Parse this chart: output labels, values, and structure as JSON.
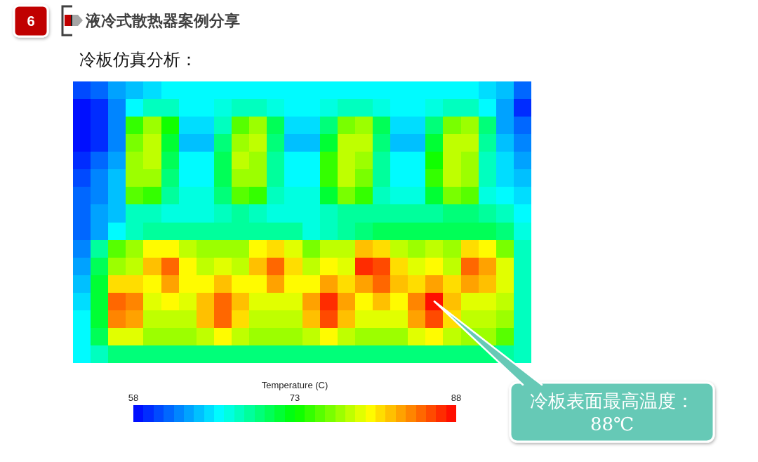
{
  "chart_data": {
    "type": "heatmap",
    "title": "液冷式散热器案例分享",
    "subtitle": "冷板仿真分析：",
    "clabel": "Temperature (C)",
    "clim": [
      58,
      88
    ],
    "cticks": [
      58,
      73,
      88
    ],
    "tick_labels": false,
    "annotations": [
      "6",
      "冷板表面最高温度：88℃"
    ],
    "categories": [
      null,
      null,
      null,
      null,
      null,
      null,
      null,
      null,
      null,
      null,
      null,
      null,
      null,
      null,
      null,
      null,
      null,
      null,
      null,
      null,
      null,
      null,
      null,
      null,
      null,
      null
    ],
    "y_categories": [
      null,
      null,
      null,
      null,
      null,
      null,
      null,
      null,
      null,
      null,
      null,
      null,
      null,
      null,
      null,
      null
    ],
    "cells": [
      [
        60,
        61,
        63,
        64,
        65,
        66,
        66,
        66,
        66,
        66,
        66,
        66,
        66,
        66,
        66,
        66,
        66,
        66,
        66,
        66,
        66,
        66,
        66,
        65,
        64,
        61
      ],
      [
        58,
        59,
        62,
        66,
        68,
        68,
        66,
        66,
        67,
        68,
        68,
        67,
        66,
        66,
        67,
        68,
        68,
        67,
        66,
        66,
        67,
        68,
        68,
        66,
        63,
        59
      ],
      [
        58,
        59,
        62,
        74,
        77,
        73,
        65,
        65,
        68,
        75,
        77,
        71,
        65,
        65,
        70,
        76,
        77,
        71,
        65,
        65,
        70,
        76,
        77,
        70,
        63,
        61
      ],
      [
        58,
        59,
        62,
        76,
        78,
        72,
        64,
        64,
        70,
        77,
        78,
        70,
        64,
        64,
        72,
        78,
        78,
        70,
        64,
        64,
        72,
        78,
        78,
        69,
        64,
        62
      ],
      [
        59,
        61,
        63,
        77,
        78,
        71,
        66,
        66,
        71,
        78,
        77,
        69,
        66,
        66,
        74,
        78,
        77,
        69,
        66,
        66,
        73,
        78,
        77,
        68,
        65,
        63
      ],
      [
        60,
        62,
        64,
        77,
        77,
        70,
        66,
        66,
        71,
        77,
        77,
        69,
        66,
        66,
        74,
        78,
        76,
        69,
        66,
        66,
        74,
        78,
        77,
        68,
        65,
        64
      ],
      [
        61,
        62,
        64,
        75,
        74,
        69,
        67,
        67,
        70,
        75,
        74,
        68,
        67,
        67,
        72,
        76,
        74,
        68,
        67,
        67,
        72,
        76,
        75,
        67,
        66,
        65
      ],
      [
        61,
        63,
        64,
        68,
        68,
        67,
        67,
        67,
        68,
        69,
        68,
        67,
        67,
        67,
        68,
        69,
        69,
        69,
        69,
        69,
        69,
        70,
        70,
        69,
        68,
        66
      ],
      [
        61,
        63,
        66,
        68,
        69,
        69,
        69,
        69,
        69,
        69,
        69,
        69,
        69,
        67,
        68,
        69,
        70,
        71,
        71,
        71,
        71,
        71,
        71,
        71,
        70,
        67
      ],
      [
        62,
        69,
        75,
        77,
        80,
        80,
        78,
        77,
        77,
        77,
        80,
        81,
        79,
        76,
        78,
        78,
        82,
        81,
        78,
        77,
        78,
        77,
        81,
        80,
        76,
        68
      ],
      [
        63,
        71,
        77,
        78,
        82,
        85,
        80,
        78,
        79,
        78,
        82,
        85,
        81,
        78,
        80,
        79,
        87,
        86,
        81,
        79,
        80,
        78,
        85,
        83,
        79,
        68
      ],
      [
        64,
        72,
        81,
        81,
        80,
        83,
        80,
        80,
        82,
        80,
        80,
        83,
        80,
        80,
        83,
        81,
        83,
        85,
        82,
        81,
        83,
        81,
        83,
        82,
        79,
        68
      ],
      [
        65,
        72,
        85,
        84,
        79,
        80,
        79,
        82,
        85,
        82,
        79,
        79,
        79,
        83,
        87,
        83,
        80,
        82,
        80,
        84,
        88,
        82,
        79,
        79,
        78,
        68
      ],
      [
        66,
        72,
        84,
        83,
        78,
        78,
        78,
        82,
        85,
        81,
        78,
        78,
        78,
        82,
        86,
        82,
        79,
        79,
        79,
        83,
        86,
        81,
        78,
        78,
        77,
        68
      ],
      [
        66,
        71,
        79,
        79,
        77,
        77,
        77,
        78,
        80,
        78,
        77,
        77,
        77,
        78,
        80,
        78,
        77,
        77,
        77,
        79,
        80,
        78,
        77,
        77,
        75,
        68
      ],
      [
        66,
        68,
        70,
        70,
        70,
        70,
        70,
        70,
        70,
        70,
        70,
        70,
        70,
        70,
        70,
        70,
        70,
        70,
        70,
        70,
        70,
        70,
        70,
        70,
        69,
        68
      ]
    ]
  }
}
